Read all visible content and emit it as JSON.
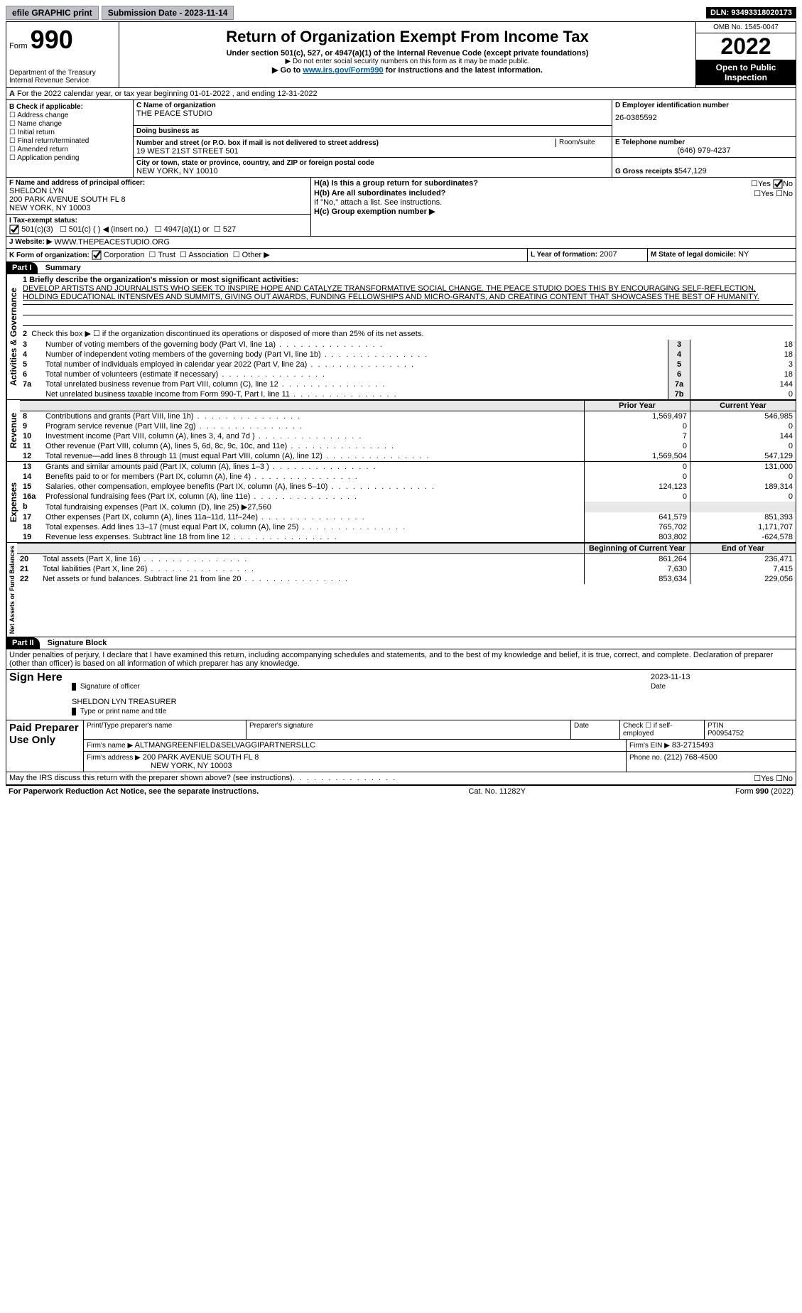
{
  "topbar": {
    "efile": "efile GRAPHIC print",
    "submission_label": "Submission Date - 2023-11-14",
    "dln": "DLN: 93493318020173"
  },
  "header": {
    "form_word": "Form",
    "form_num": "990",
    "dept": "Department of the Treasury",
    "irs": "Internal Revenue Service",
    "title": "Return of Organization Exempt From Income Tax",
    "under": "Under section 501(c), 527, or 4947(a)(1) of the Internal Revenue Code (except private foundations)",
    "ssn": "▶ Do not enter social security numbers on this form as it may be made public.",
    "go_to_pre": "▶ Go to ",
    "go_to_link": "www.irs.gov/Form990",
    "go_to_post": " for instructions and the latest information.",
    "omb": "OMB No. 1545-0047",
    "year": "2022",
    "open": "Open to Public Inspection"
  },
  "period": {
    "line_a": "For the 2022 calendar year, or tax year beginning 01-01-2022    , and ending 12-31-2022"
  },
  "box_b": {
    "title": "B Check if applicable:",
    "items": [
      "Address change",
      "Name change",
      "Initial return",
      "Final return/terminated",
      "Amended return",
      "Application pending"
    ]
  },
  "box_c": {
    "c_label": "C Name of organization",
    "org": "THE PEACE STUDIO",
    "dba": "Doing business as",
    "street_label": "Number and street (or P.O. box if mail is not delivered to street address)",
    "room": "Room/suite",
    "street": "19 WEST 21ST STREET 501",
    "city_label": "City or town, state or province, country, and ZIP or foreign postal code",
    "city": "NEW YORK, NY  10010"
  },
  "box_d": {
    "label": "D Employer identification number",
    "ein": "26-0385592"
  },
  "box_e": {
    "label": "E Telephone number",
    "phone": "(646) 979-4237"
  },
  "box_g": {
    "label": "G Gross receipts $",
    "val": "547,129"
  },
  "box_f": {
    "label": "F  Name and address of principal officer:",
    "name": "SHELDON LYN",
    "addr1": "200 PARK AVENUE SOUTH FL 8",
    "addr2": "NEW YORK, NY  10003"
  },
  "box_h": {
    "ha": "H(a)  Is this a group return for subordinates?",
    "hb": "H(b)  Are all subordinates included?",
    "note": "If \"No,\" attach a list. See instructions.",
    "hc": "H(c)  Group exemption number ▶"
  },
  "tax_status": {
    "i": "I  Tax-exempt status:",
    "opts": [
      "501(c)(3)",
      "501(c) (   ) ◀ (insert no.)",
      "4947(a)(1) or",
      "527"
    ]
  },
  "box_j": {
    "label": "J   Website: ▶",
    "url": "WWW.THEPEACESTUDIO.ORG"
  },
  "box_k": {
    "label": "K Form of organization:",
    "opts": [
      "Corporation",
      "Trust",
      "Association",
      "Other ▶"
    ]
  },
  "box_l": {
    "label": "L Year of formation:",
    "val": "2007"
  },
  "box_m": {
    "label": "M State of legal domicile:",
    "val": "NY"
  },
  "part1": {
    "num": "Part I",
    "title": "Summary",
    "mission_label": "1  Briefly describe the organization's mission or most significant activities:",
    "mission": "DEVELOP ARTISTS AND JOURNALISTS WHO SEEK TO INSPIRE HOPE AND CATALYZE TRANSFORMATIVE SOCIAL CHANGE. THE PEACE STUDIO DOES THIS BY ENCOURAGING SELF-REFLECTION, HOLDING EDUCATIONAL INTENSIVES AND SUMMITS, GIVING OUT AWARDS, FUNDING FELLOWSHIPS AND MICRO-GRANTS, AND CREATING CONTENT THAT SHOWCASES THE BEST OF HUMANITY.",
    "line2": "Check this box ▶ ☐ if the organization discontinued its operations or disposed of more than 25% of its net assets."
  },
  "sections": {
    "gov": "Activities & Governance",
    "rev": "Revenue",
    "exp": "Expenses",
    "net": "Net Assets or Fund Balances"
  },
  "col_headers": {
    "prior": "Prior Year",
    "current": "Current Year",
    "begin": "Beginning of Current Year",
    "end": "End of Year"
  },
  "gov_lines": [
    {
      "n": "3",
      "t": "Number of voting members of the governing body (Part VI, line 1a)",
      "b": "3",
      "v": "18"
    },
    {
      "n": "4",
      "t": "Number of independent voting members of the governing body (Part VI, line 1b)",
      "b": "4",
      "v": "18"
    },
    {
      "n": "5",
      "t": "Total number of individuals employed in calendar year 2022 (Part V, line 2a)",
      "b": "5",
      "v": "3"
    },
    {
      "n": "6",
      "t": "Total number of volunteers (estimate if necessary)",
      "b": "6",
      "v": "18"
    },
    {
      "n": "7a",
      "t": "Total unrelated business revenue from Part VIII, column (C), line 12",
      "b": "7a",
      "v": "144"
    },
    {
      "n": "",
      "t": "Net unrelated business taxable income from Form 990-T, Part I, line 11",
      "b": "7b",
      "v": "0"
    }
  ],
  "rev_lines": [
    {
      "n": "8",
      "t": "Contributions and grants (Part VIII, line 1h)",
      "p": "1,569,497",
      "c": "546,985"
    },
    {
      "n": "9",
      "t": "Program service revenue (Part VIII, line 2g)",
      "p": "0",
      "c": "0"
    },
    {
      "n": "10",
      "t": "Investment income (Part VIII, column (A), lines 3, 4, and 7d )",
      "p": "7",
      "c": "144"
    },
    {
      "n": "11",
      "t": "Other revenue (Part VIII, column (A), lines 5, 6d, 8c, 9c, 10c, and 11e)",
      "p": "0",
      "c": "0"
    },
    {
      "n": "12",
      "t": "Total revenue—add lines 8 through 11 (must equal Part VIII, column (A), line 12)",
      "p": "1,569,504",
      "c": "547,129"
    }
  ],
  "exp_lines": [
    {
      "n": "13",
      "t": "Grants and similar amounts paid (Part IX, column (A), lines 1–3 )",
      "p": "0",
      "c": "131,000"
    },
    {
      "n": "14",
      "t": "Benefits paid to or for members (Part IX, column (A), line 4)",
      "p": "0",
      "c": "0"
    },
    {
      "n": "15",
      "t": "Salaries, other compensation, employee benefits (Part IX, column (A), lines 5–10)",
      "p": "124,123",
      "c": "189,314"
    },
    {
      "n": "16a",
      "t": "Professional fundraising fees (Part IX, column (A), line 11e)",
      "p": "0",
      "c": "0"
    },
    {
      "n": "b",
      "t": "Total fundraising expenses (Part IX, column (D), line 25) ▶27,560",
      "p": "",
      "c": "",
      "grey": true
    },
    {
      "n": "17",
      "t": "Other expenses (Part IX, column (A), lines 11a–11d, 11f–24e)",
      "p": "641,579",
      "c": "851,393"
    },
    {
      "n": "18",
      "t": "Total expenses. Add lines 13–17 (must equal Part IX, column (A), line 25)",
      "p": "765,702",
      "c": "1,171,707"
    },
    {
      "n": "19",
      "t": "Revenue less expenses. Subtract line 18 from line 12",
      "p": "803,802",
      "c": "-624,578"
    }
  ],
  "net_lines": [
    {
      "n": "20",
      "t": "Total assets (Part X, line 16)",
      "p": "861,264",
      "c": "236,471"
    },
    {
      "n": "21",
      "t": "Total liabilities (Part X, line 26)",
      "p": "7,630",
      "c": "7,415"
    },
    {
      "n": "22",
      "t": "Net assets or fund balances. Subtract line 21 from line 20",
      "p": "853,634",
      "c": "229,056"
    }
  ],
  "part2": {
    "num": "Part II",
    "title": "Signature Block",
    "penalty": "Under penalties of perjury, I declare that I have examined this return, including accompanying schedules and statements, and to the best of my knowledge and belief, it is true, correct, and complete. Declaration of preparer (other than officer) is based on all information of which preparer has any knowledge."
  },
  "sign": {
    "here": "Sign Here",
    "sig_officer": "Signature of officer",
    "date": "Date",
    "date_val": "2023-11-13",
    "name_title": "SHELDON LYN  TREASURER",
    "type_print": "Type or print name and title"
  },
  "paid": {
    "label": "Paid Preparer Use Only",
    "h1": "Print/Type preparer's name",
    "h2": "Preparer's signature",
    "h3": "Date",
    "h4": "Check ☐ if self-employed",
    "h5_label": "PTIN",
    "ptin": "P00954752",
    "firm_name_label": "Firm's name    ▶",
    "firm_name": "ALTMANGREENFIELD&SELVAGGIPARTNERSLLC",
    "firm_ein_label": "Firm's EIN ▶",
    "firm_ein": "83-2715493",
    "firm_addr_label": "Firm's address ▶",
    "firm_addr1": "200 PARK AVENUE SOUTH FL 8",
    "firm_addr2": "NEW YORK, NY  10003",
    "phone_label": "Phone no.",
    "phone": "(212) 768-4500"
  },
  "discuss": "May the IRS discuss this return with the preparer shown above? (see instructions)",
  "footer": {
    "pra": "For Paperwork Reduction Act Notice, see the separate instructions.",
    "cat": "Cat. No. 11282Y",
    "form": "Form 990 (2022)"
  },
  "yesno": {
    "yes": "Yes",
    "no": "No"
  }
}
